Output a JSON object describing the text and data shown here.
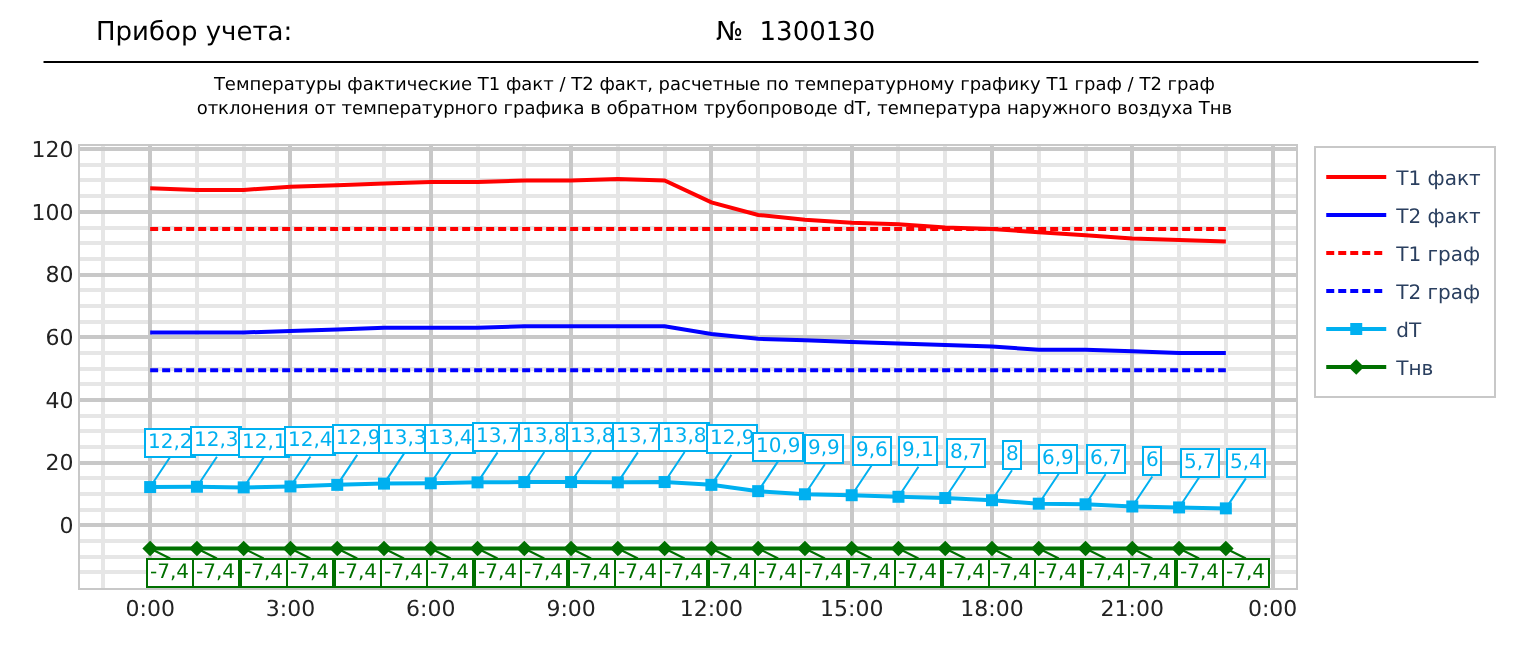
{
  "chart_data": {
    "type": "line",
    "title": "Температуры фактические Т1 факт / Т2 факт, расчетные по температурному графику Т1 граф / Т2 граф\nотклонения от температурного графика в обратном трубопроводе dT, температура наружного воздуха Тнв",
    "annotations": [
      "Прибор учета:",
      "№  1300130"
    ],
    "x": [
      0,
      1,
      2,
      3,
      4,
      5,
      6,
      7,
      8,
      9,
      10,
      11,
      12,
      13,
      14,
      15,
      16,
      17,
      18,
      19,
      20,
      21,
      22,
      23
    ],
    "xlim": [
      -1.5,
      24.5
    ],
    "xticks": [
      {
        "value": 0,
        "label": "0:00"
      },
      {
        "value": 3,
        "label": "3:00"
      },
      {
        "value": 6,
        "label": "6:00"
      },
      {
        "value": 9,
        "label": "9:00"
      },
      {
        "value": 12,
        "label": "12:00"
      },
      {
        "value": 15,
        "label": "15:00"
      },
      {
        "value": 18,
        "label": "18:00"
      },
      {
        "value": 21,
        "label": "21:00"
      },
      {
        "value": 24,
        "label": "0:00"
      }
    ],
    "ylim": [
      -20,
      121
    ],
    "yticks": [
      0,
      20,
      40,
      60,
      80,
      100,
      120
    ],
    "grid": true,
    "legend": "right",
    "series": [
      {
        "name": "Т1 факт",
        "color": "#ff0000",
        "line_style": "solid",
        "marker": "none",
        "values": [
          107.5,
          107,
          107,
          108,
          108.5,
          109,
          109.5,
          109.5,
          110,
          110,
          110.5,
          110,
          103,
          99,
          97.5,
          96.5,
          96,
          95,
          94.5,
          93.5,
          92.5,
          91.5,
          91,
          90.5
        ]
      },
      {
        "name": "Т2 факт",
        "color": "#0000ff",
        "line_style": "solid",
        "marker": "none",
        "values": [
          61.5,
          61.5,
          61.5,
          62,
          62.5,
          63,
          63,
          63,
          63.5,
          63.5,
          63.5,
          63.5,
          61,
          59.5,
          59,
          58.5,
          58,
          57.5,
          57,
          56,
          56,
          55.5,
          55,
          55
        ]
      },
      {
        "name": "Т1 граф",
        "color": "#ff0000",
        "line_style": "dashed",
        "marker": "none",
        "values": [
          94.5,
          94.5,
          94.5,
          94.5,
          94.5,
          94.5,
          94.5,
          94.5,
          94.5,
          94.5,
          94.5,
          94.5,
          94.5,
          94.5,
          94.5,
          94.5,
          94.5,
          94.5,
          94.5,
          94.5,
          94.5,
          94.5,
          94.5,
          94.5
        ]
      },
      {
        "name": "Т2 граф",
        "color": "#0000ff",
        "line_style": "dashed",
        "marker": "none",
        "values": [
          49.5,
          49.5,
          49.5,
          49.5,
          49.5,
          49.5,
          49.5,
          49.5,
          49.5,
          49.5,
          49.5,
          49.5,
          49.5,
          49.5,
          49.5,
          49.5,
          49.5,
          49.5,
          49.5,
          49.5,
          49.5,
          49.5,
          49.5,
          49.5
        ]
      },
      {
        "name": "dT",
        "color": "#00b0f0",
        "line_style": "solid",
        "marker": "square",
        "values": [
          12.2,
          12.3,
          12.1,
          12.4,
          12.9,
          13.3,
          13.4,
          13.7,
          13.8,
          13.8,
          13.7,
          13.8,
          12.9,
          10.9,
          9.9,
          9.6,
          9.1,
          8.7,
          8,
          6.9,
          6.7,
          6,
          5.7,
          5.4
        ],
        "value_labels": [
          "12,2",
          "12,3",
          "12,1",
          "12,4",
          "12,9",
          "13,3",
          "13,4",
          "13,7",
          "13,8",
          "13,8",
          "13,7",
          "13,8",
          "12,9",
          "10,9",
          "9,9",
          "9,6",
          "9,1",
          "8,7",
          "8",
          "6,9",
          "6,7",
          "6",
          "5,7",
          "5,4"
        ]
      },
      {
        "name": "Тнв",
        "color": "#007000",
        "line_style": "solid",
        "marker": "diamond",
        "values": [
          -7.4,
          -7.4,
          -7.4,
          -7.4,
          -7.4,
          -7.4,
          -7.4,
          -7.4,
          -7.4,
          -7.4,
          -7.4,
          -7.4,
          -7.4,
          -7.4,
          -7.4,
          -7.4,
          -7.4,
          -7.4,
          -7.4,
          -7.4,
          -7.4,
          -7.4,
          -7.4,
          -7.4
        ],
        "value_labels": [
          "-7,4",
          "-7,4",
          "-7,4",
          "-7,4",
          "-7,4",
          "-7,4",
          "-7,4",
          "-7,4",
          "-7,4",
          "-7,4",
          "-7,4",
          "-7,4",
          "-7,4",
          "-7,4",
          "-7,4",
          "-7,4",
          "-7,4",
          "-7,4",
          "-7,4",
          "-7,4",
          "-7,4",
          "-7,4",
          "-7,4",
          "-7,4"
        ]
      }
    ]
  }
}
